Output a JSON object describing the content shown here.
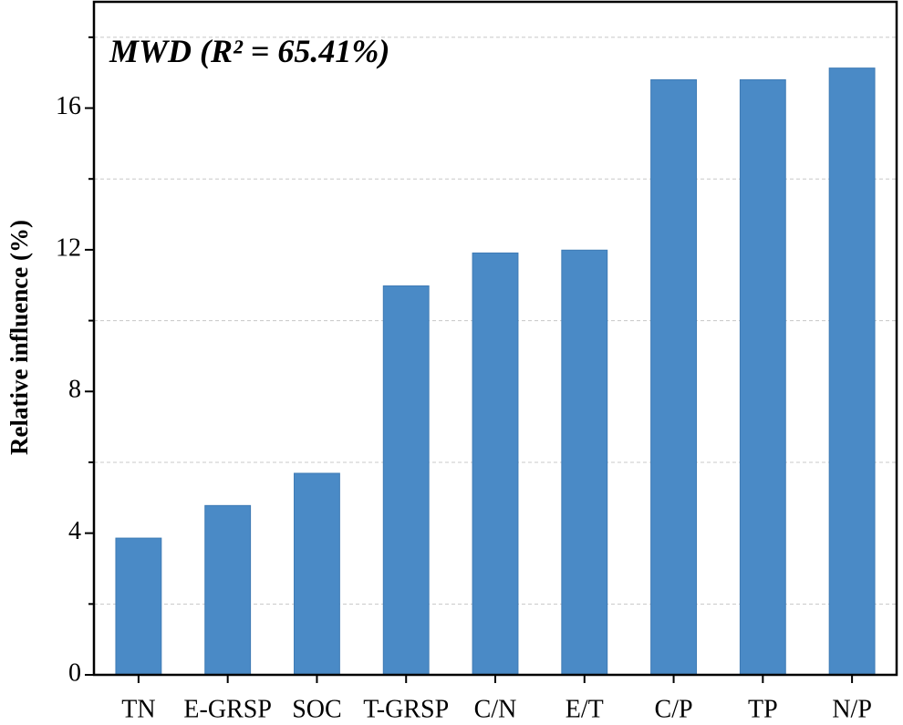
{
  "chart_data": {
    "type": "bar",
    "title": "MWD (R² = 65.41%)",
    "y_label": "Relative influence (%)",
    "categories": [
      "TN",
      "E-GRSP",
      "SOC",
      "T-GRSP",
      "C/N",
      "E/T",
      "C/P",
      "TP",
      "N/P"
    ],
    "values": [
      3.86,
      4.78,
      5.69,
      10.98,
      11.91,
      11.99,
      16.8,
      16.8,
      17.13
    ],
    "color": "#4a8ac6",
    "ylim": [
      0,
      19
    ],
    "yticks": [
      0,
      4,
      8,
      12,
      16
    ],
    "minor_yticks": [
      2,
      6,
      10,
      14,
      18
    ],
    "grid": true
  }
}
